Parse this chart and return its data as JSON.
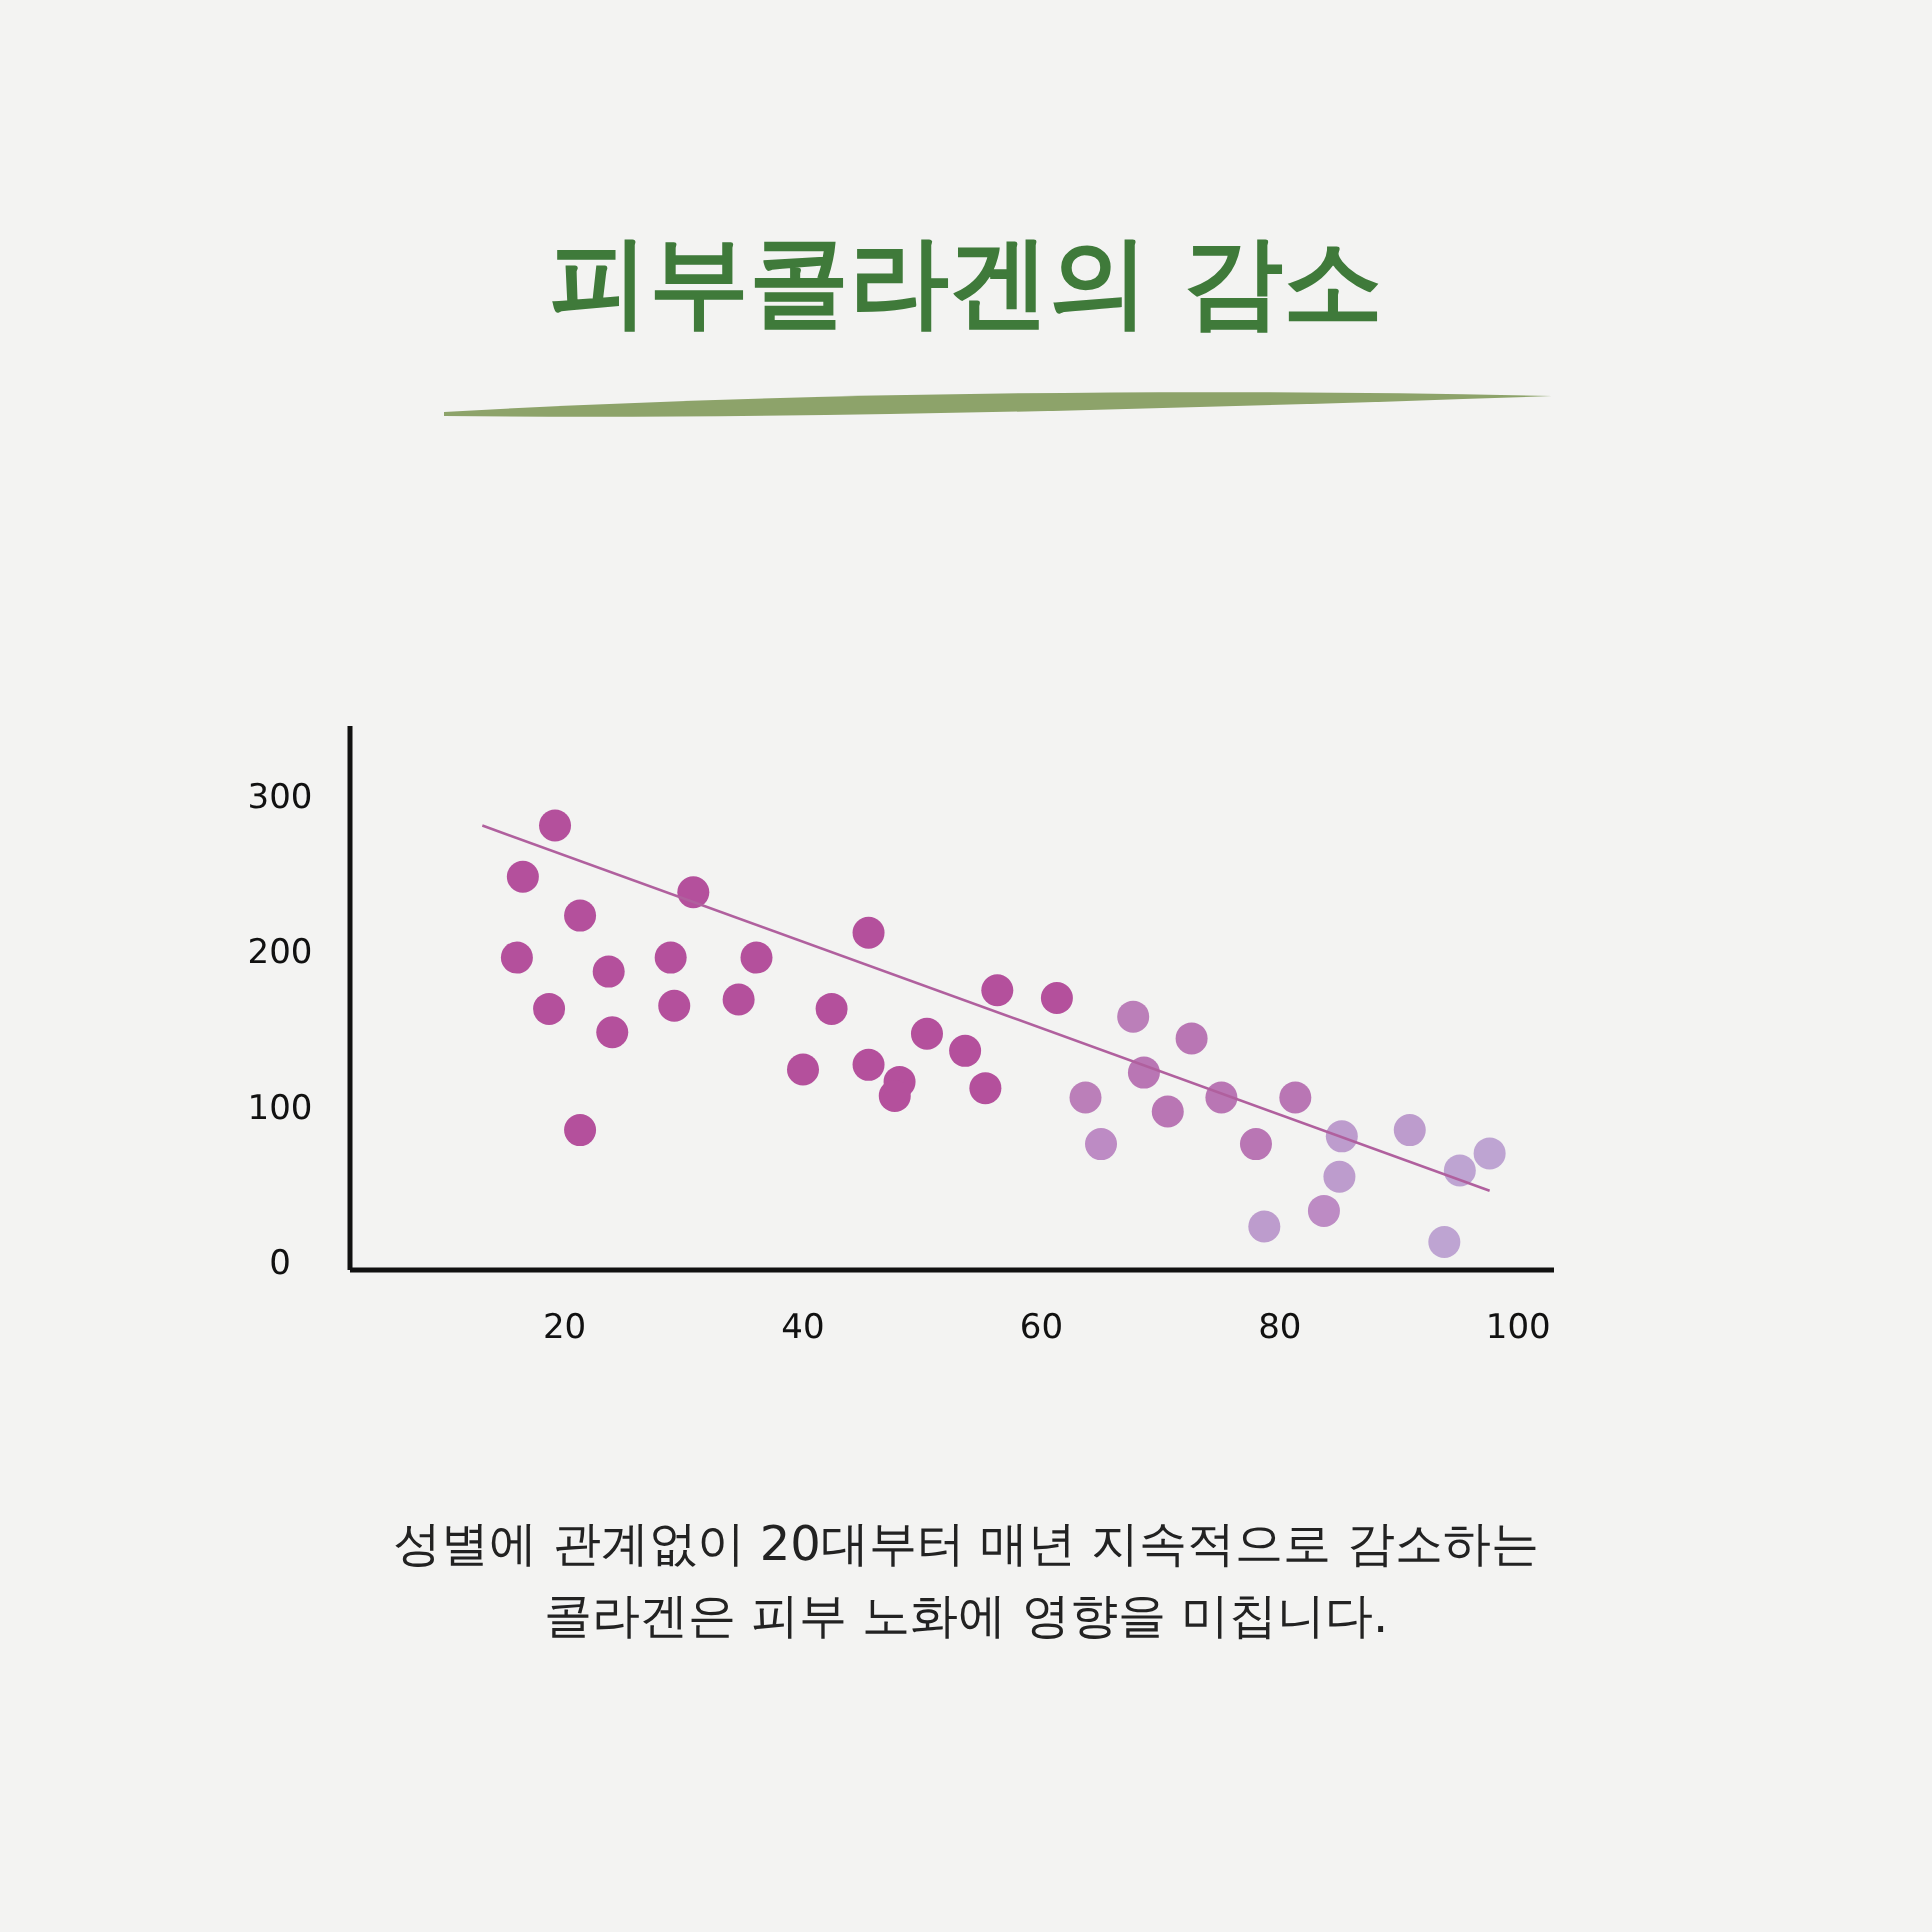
{
  "chart_data": {
    "type": "scatter",
    "title": "피부콜라겐의 감소",
    "annotations": [
      "성별에 관계없이 20대부터 매년 지속적으로 감소하는\n콜라겐은 피부 노화에 영향을 미칩니다."
    ],
    "xlim": [
      2,
      103
    ],
    "ylim": [
      -5,
      345
    ],
    "xticks": [
      20,
      40,
      60,
      80,
      100
    ],
    "yticks": [
      0,
      100,
      200,
      300
    ],
    "grid": false,
    "series": [
      {
        "marker": "circle",
        "x": [
          16.0,
          16.5,
          19.2,
          18.7,
          21.3,
          21.3,
          23.7,
          24.0,
          28.9,
          29.2,
          30.8,
          34.6,
          36.1,
          40.0,
          42.4,
          45.5,
          45.5,
          48.1,
          47.7,
          50.4,
          53.6,
          55.3,
          56.3,
          61.3,
          63.7,
          65.0,
          67.7,
          68.6,
          70.6,
          72.6,
          75.1,
          78.0,
          78.7,
          81.3,
          83.7,
          85.2,
          85.0,
          90.9,
          93.8,
          95.1,
          97.6
        ],
        "values": [
          196,
          248,
          281,
          163,
          223,
          85,
          187,
          148,
          196,
          165,
          238,
          169,
          196,
          124,
          163,
          212,
          127,
          116,
          107,
          147,
          136,
          112,
          175,
          170,
          106,
          76,
          158,
          122,
          97,
          144,
          106,
          76,
          23,
          106,
          33,
          81,
          55,
          85,
          13,
          59,
          70
        ],
        "colors": [
          "#b4509c",
          "#b4509c",
          "#b4509c",
          "#b4509c",
          "#b4509c",
          "#b4509c",
          "#b4509c",
          "#b4509c",
          "#b4509c",
          "#b4509c",
          "#b4509c",
          "#b4509c",
          "#b4509c",
          "#b4509c",
          "#b4509c",
          "#b4509c",
          "#b4509c",
          "#b4509c",
          "#b4509c",
          "#b4509c",
          "#b4509c",
          "#b4509c",
          "#b4509c",
          "#b4509c",
          "#bb7fb9",
          "#bd8bc4",
          "#bb7fb9",
          "#b976b4",
          "#b976b4",
          "#b976b4",
          "#b976b4",
          "#b976b4",
          "#bd9ccd",
          "#b976b4",
          "#bd8bc4",
          "#bd9ccd",
          "#bd9ccd",
          "#bd9ccd",
          "#bea4d2",
          "#bea4d2",
          "#bea4d2"
        ]
      },
      {
        "type": "line",
        "x": [
          13.1,
          97.6
        ],
        "values": [
          281,
          46
        ],
        "color": "#b0609e"
      }
    ]
  }
}
